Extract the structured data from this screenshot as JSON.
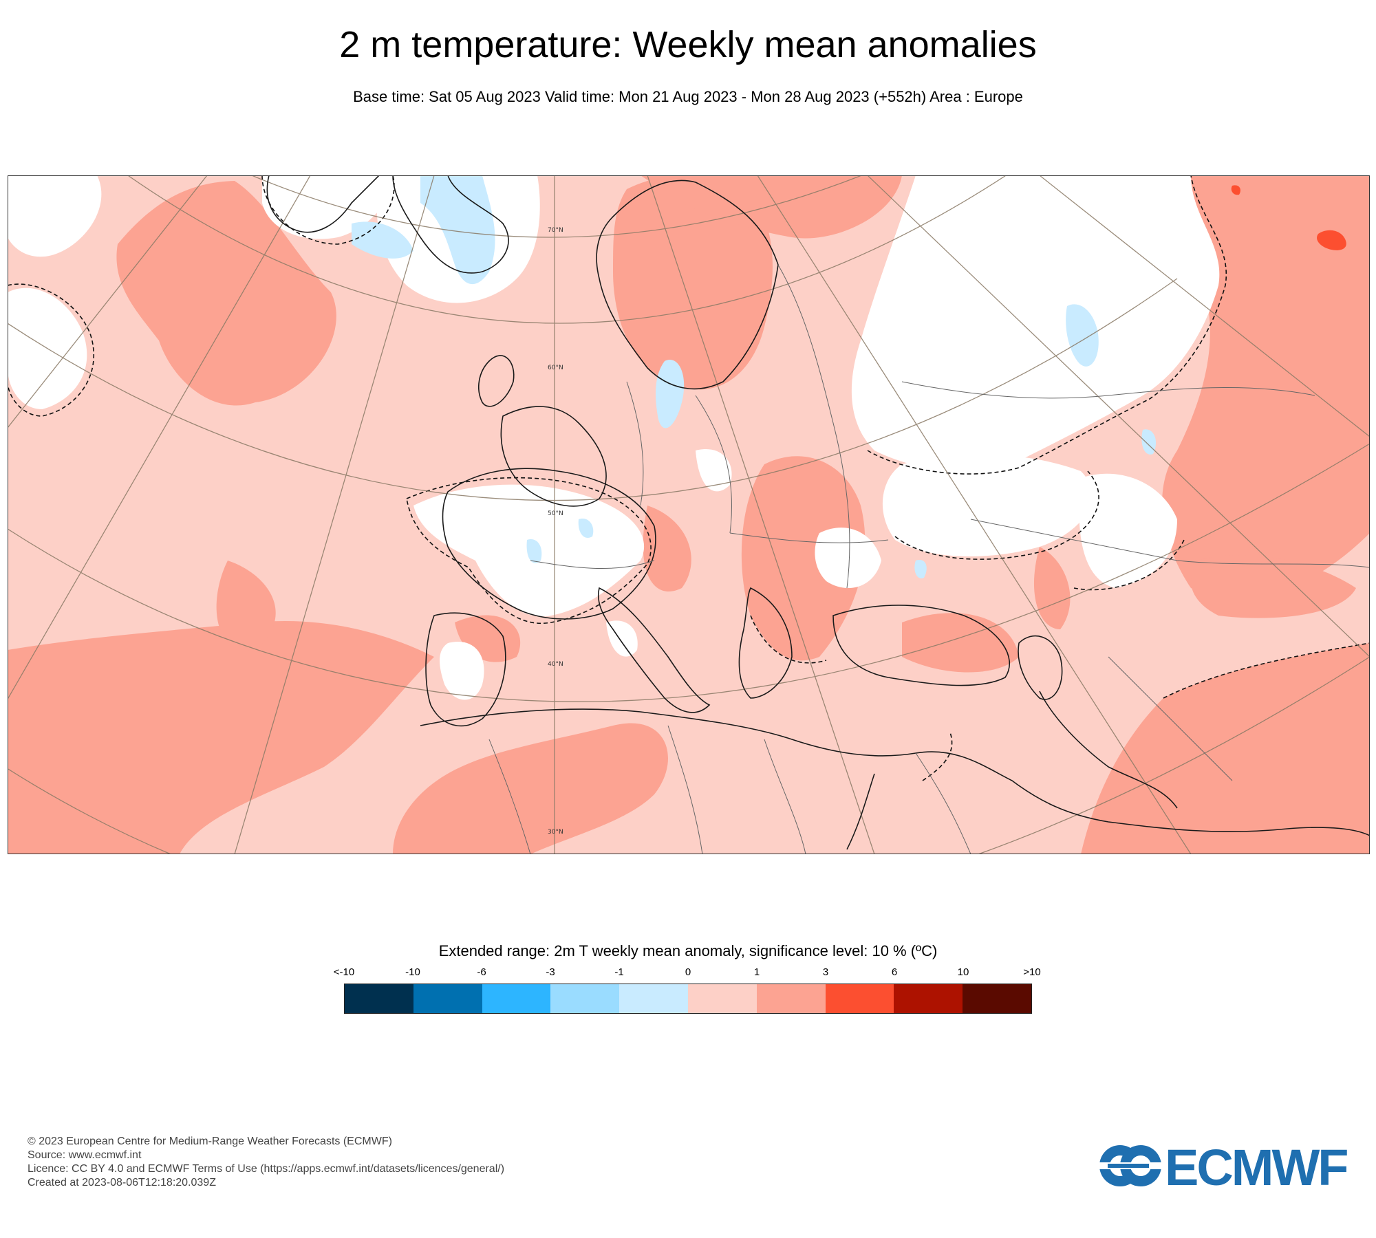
{
  "header": {
    "title": "2 m temperature: Weekly mean anomalies",
    "subtitle": "Base time: Sat 05 Aug 2023 Valid time: Mon 21 Aug 2023 - Mon 28 Aug 2023 (+552h) Area : Europe"
  },
  "map": {
    "latitude_labels": [
      "70°N",
      "60°N",
      "50°N",
      "40°N",
      "30°N"
    ],
    "colors": {
      "background_anomaly": "#fdd0c7",
      "warm_anomaly": "#fca392",
      "neutral": "#ffffff",
      "cool_anomaly": "#c9ebff",
      "hot_anomaly": "#fc4f30",
      "coastline": "#1a1a1a",
      "graticule": "#8a7a66"
    }
  },
  "legend": {
    "title": "Extended range: 2m T weekly mean anomaly, significance level: 10 % (ºC)",
    "ticks": [
      "<-10",
      "-10",
      "-6",
      "-3",
      "-1",
      "0",
      "1",
      "3",
      "6",
      "10",
      ">10"
    ],
    "colors": [
      "#00304f",
      "#0070b0",
      "#2db5ff",
      "#9adcff",
      "#c9ebff",
      "#fdd0c7",
      "#fca392",
      "#fc4f30",
      "#ad1200",
      "#5a0a00"
    ]
  },
  "footer": {
    "lines": [
      "© 2023 European Centre for Medium-Range Weather Forecasts (ECMWF)",
      "Source: www.ecmwf.int",
      "Licence: CC BY 4.0 and ECMWF Terms of Use (https://apps.ecmwf.int/datasets/licences/general/)",
      "Created at 2023-08-06T12:18:20.039Z"
    ],
    "logo_text": "ECMWF"
  }
}
